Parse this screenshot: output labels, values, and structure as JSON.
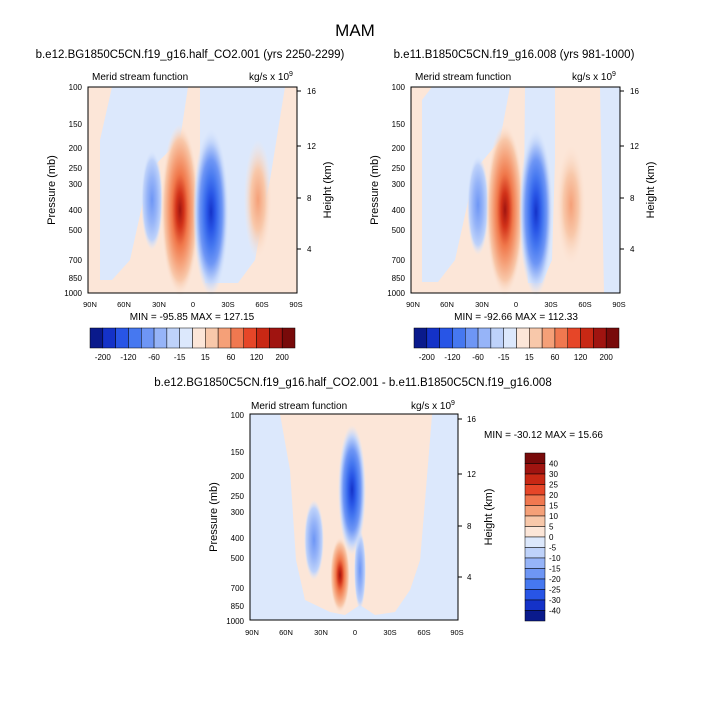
{
  "figure": {
    "title": "MAM",
    "panels": [
      {
        "id": "top-left",
        "title": "b.e12.BG1850C5CN.f19_g16.half_CO2.001 (yrs 2250-2299)",
        "left_label": "Merid stream function",
        "right_label": "kg/s x 10",
        "right_label_exp": "9",
        "ylabel": "Pressure (mb)",
        "ylabel_right": "Height (km)",
        "minmax": "MIN = -95.85   MAX = 127.15"
      },
      {
        "id": "top-right",
        "title": "b.e11.B1850C5CN.f19_g16.008 (yrs 981-1000)",
        "left_label": "Merid stream function",
        "right_label": "kg/s x 10",
        "right_label_exp": "9",
        "ylabel": "Pressure (mb)",
        "ylabel_right": "Height (km)",
        "minmax": "MIN = -92.66   MAX = 112.33"
      },
      {
        "id": "bottom",
        "title": "b.e12.BG1850C5CN.f19_g16.half_CO2.001 - b.e11.B1850C5CN.f19_g16.008",
        "left_label": "Merid stream function",
        "right_label": "kg/s x 10",
        "right_label_exp": "9",
        "ylabel": "Pressure (mb)",
        "ylabel_right": "Height (km)",
        "minmax": "MIN = -30.12   MAX = 15.66"
      }
    ]
  },
  "chart_data": [
    {
      "type": "heatmap",
      "title": "b.e12.BG1850C5CN.f19_g16.half_CO2.001 (yrs 2250-2299)",
      "xlabel": "",
      "ylabel": "Pressure (mb)",
      "ylabel_right": "Height (km)",
      "x_ticks": [
        "90N",
        "60N",
        "30N",
        "0",
        "30S",
        "60S",
        "90S"
      ],
      "y_ticks": [
        100,
        150,
        200,
        250,
        300,
        400,
        500,
        700,
        850,
        1000
      ],
      "y_ticks_right": [
        4,
        8,
        12,
        16
      ],
      "y_scale": "log",
      "ylim": [
        1000,
        100
      ],
      "min": -95.85,
      "max": 127.15,
      "features": [
        {
          "lat": 15,
          "p_top": 150,
          "p_bottom": 900,
          "value": 127.15
        },
        {
          "lat": -12,
          "p_top": 150,
          "p_bottom": 900,
          "value": -95.85
        },
        {
          "lat": 38,
          "p_top": 250,
          "p_bottom": 850,
          "value": -25
        },
        {
          "lat": -45,
          "p_top": 220,
          "p_bottom": 850,
          "value": 20
        }
      ]
    },
    {
      "type": "heatmap",
      "title": "b.e11.B1850C5CN.f19_g16.008 (yrs 981-1000)",
      "xlabel": "",
      "ylabel": "Pressure (mb)",
      "ylabel_right": "Height (km)",
      "x_ticks": [
        "90N",
        "60N",
        "30N",
        "0",
        "30S",
        "60S",
        "90S"
      ],
      "y_ticks": [
        100,
        150,
        200,
        250,
        300,
        400,
        500,
        700,
        850,
        1000
      ],
      "y_ticks_right": [
        4,
        8,
        12,
        16
      ],
      "y_scale": "log",
      "ylim": [
        1000,
        100
      ],
      "min": -92.66,
      "max": 112.33,
      "features": [
        {
          "lat": 15,
          "p_top": 150,
          "p_bottom": 900,
          "value": 112.33
        },
        {
          "lat": -10,
          "p_top": 150,
          "p_bottom": 900,
          "value": -92.66
        },
        {
          "lat": 38,
          "p_top": 250,
          "p_bottom": 850,
          "value": -25
        },
        {
          "lat": -48,
          "p_top": 220,
          "p_bottom": 850,
          "value": 25
        }
      ]
    },
    {
      "type": "heatmap",
      "title": "b.e12.BG1850C5CN.f19_g16.half_CO2.001 - b.e11.B1850C5CN.f19_g16.008",
      "xlabel": "",
      "ylabel": "Pressure (mb)",
      "ylabel_right": "Height (km)",
      "x_ticks": [
        "90N",
        "60N",
        "30N",
        "0",
        "30S",
        "60S",
        "90S"
      ],
      "y_ticks": [
        100,
        150,
        200,
        250,
        300,
        400,
        500,
        700,
        850,
        1000
      ],
      "y_ticks_right": [
        4,
        8,
        12,
        16
      ],
      "y_scale": "log",
      "ylim": [
        1000,
        100
      ],
      "min": -30.12,
      "max": 15.66,
      "features": [
        {
          "lat": 0,
          "p_top": 160,
          "p_bottom": 450,
          "value": -30.12
        },
        {
          "lat": 10,
          "p_top": 400,
          "p_bottom": 900,
          "value": 15.66
        },
        {
          "lat": 22,
          "p_top": 400,
          "p_bottom": 850,
          "value": -10
        },
        {
          "lat": -5,
          "p_top": 500,
          "p_bottom": 900,
          "value": -8
        }
      ]
    }
  ],
  "colorbars": {
    "top": {
      "labels": [
        "-200",
        "-120",
        "-60",
        "-15",
        "15",
        "60",
        "120",
        "200"
      ],
      "colors": [
        "#0a1a8c",
        "#1432c8",
        "#2855e6",
        "#4678f0",
        "#6e96f5",
        "#96b4f8",
        "#bed2fa",
        "#dce8fc",
        "#fce6d8",
        "#f8c8aa",
        "#f5a078",
        "#f07850",
        "#e64628",
        "#c82814",
        "#a01410",
        "#780a0a"
      ]
    },
    "bottom": {
      "labels": [
        "40",
        "30",
        "25",
        "20",
        "15",
        "10",
        "5",
        "0",
        "-5",
        "-10",
        "-15",
        "-20",
        "-25",
        "-30",
        "-40"
      ],
      "colors": [
        "#780a0a",
        "#a01410",
        "#c82814",
        "#e64628",
        "#f07850",
        "#f5a078",
        "#f8c8aa",
        "#fce6d8",
        "#dce8fc",
        "#bed2fa",
        "#96b4f8",
        "#6e96f5",
        "#4678f0",
        "#2855e6",
        "#1432c8",
        "#0a1a8c"
      ]
    }
  }
}
